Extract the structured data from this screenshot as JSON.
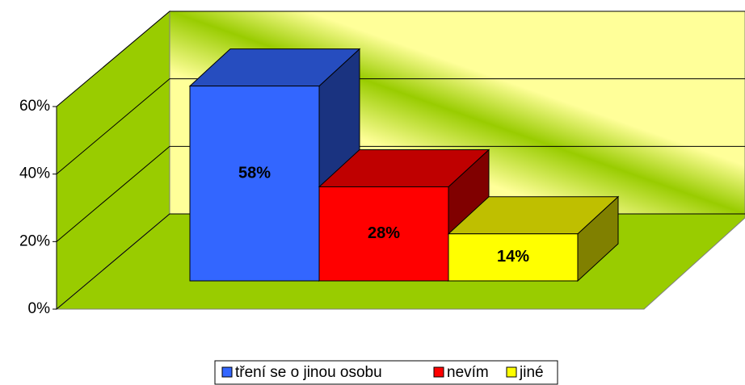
{
  "chart_data": {
    "type": "bar",
    "categories": [
      null
    ],
    "series": [
      {
        "name": "tření se o jinou osobu",
        "color": "#3366ff",
        "values": [
          58
        ],
        "value_labels": [
          "58%"
        ]
      },
      {
        "name": "nevím",
        "color": "#ff0000",
        "values": [
          28
        ],
        "value_labels": [
          "28%"
        ]
      },
      {
        "name": "jiné",
        "color": "#ffff00",
        "values": [
          14
        ],
        "value_labels": [
          "14%"
        ]
      }
    ],
    "ylim": [
      0,
      60
    ],
    "yticks": [
      {
        "value": 0,
        "label": "0%"
      },
      {
        "value": 20,
        "label": "20%"
      },
      {
        "value": 40,
        "label": "40%"
      },
      {
        "value": 60,
        "label": "60%"
      }
    ],
    "grid": true,
    "legend": "bottom"
  }
}
